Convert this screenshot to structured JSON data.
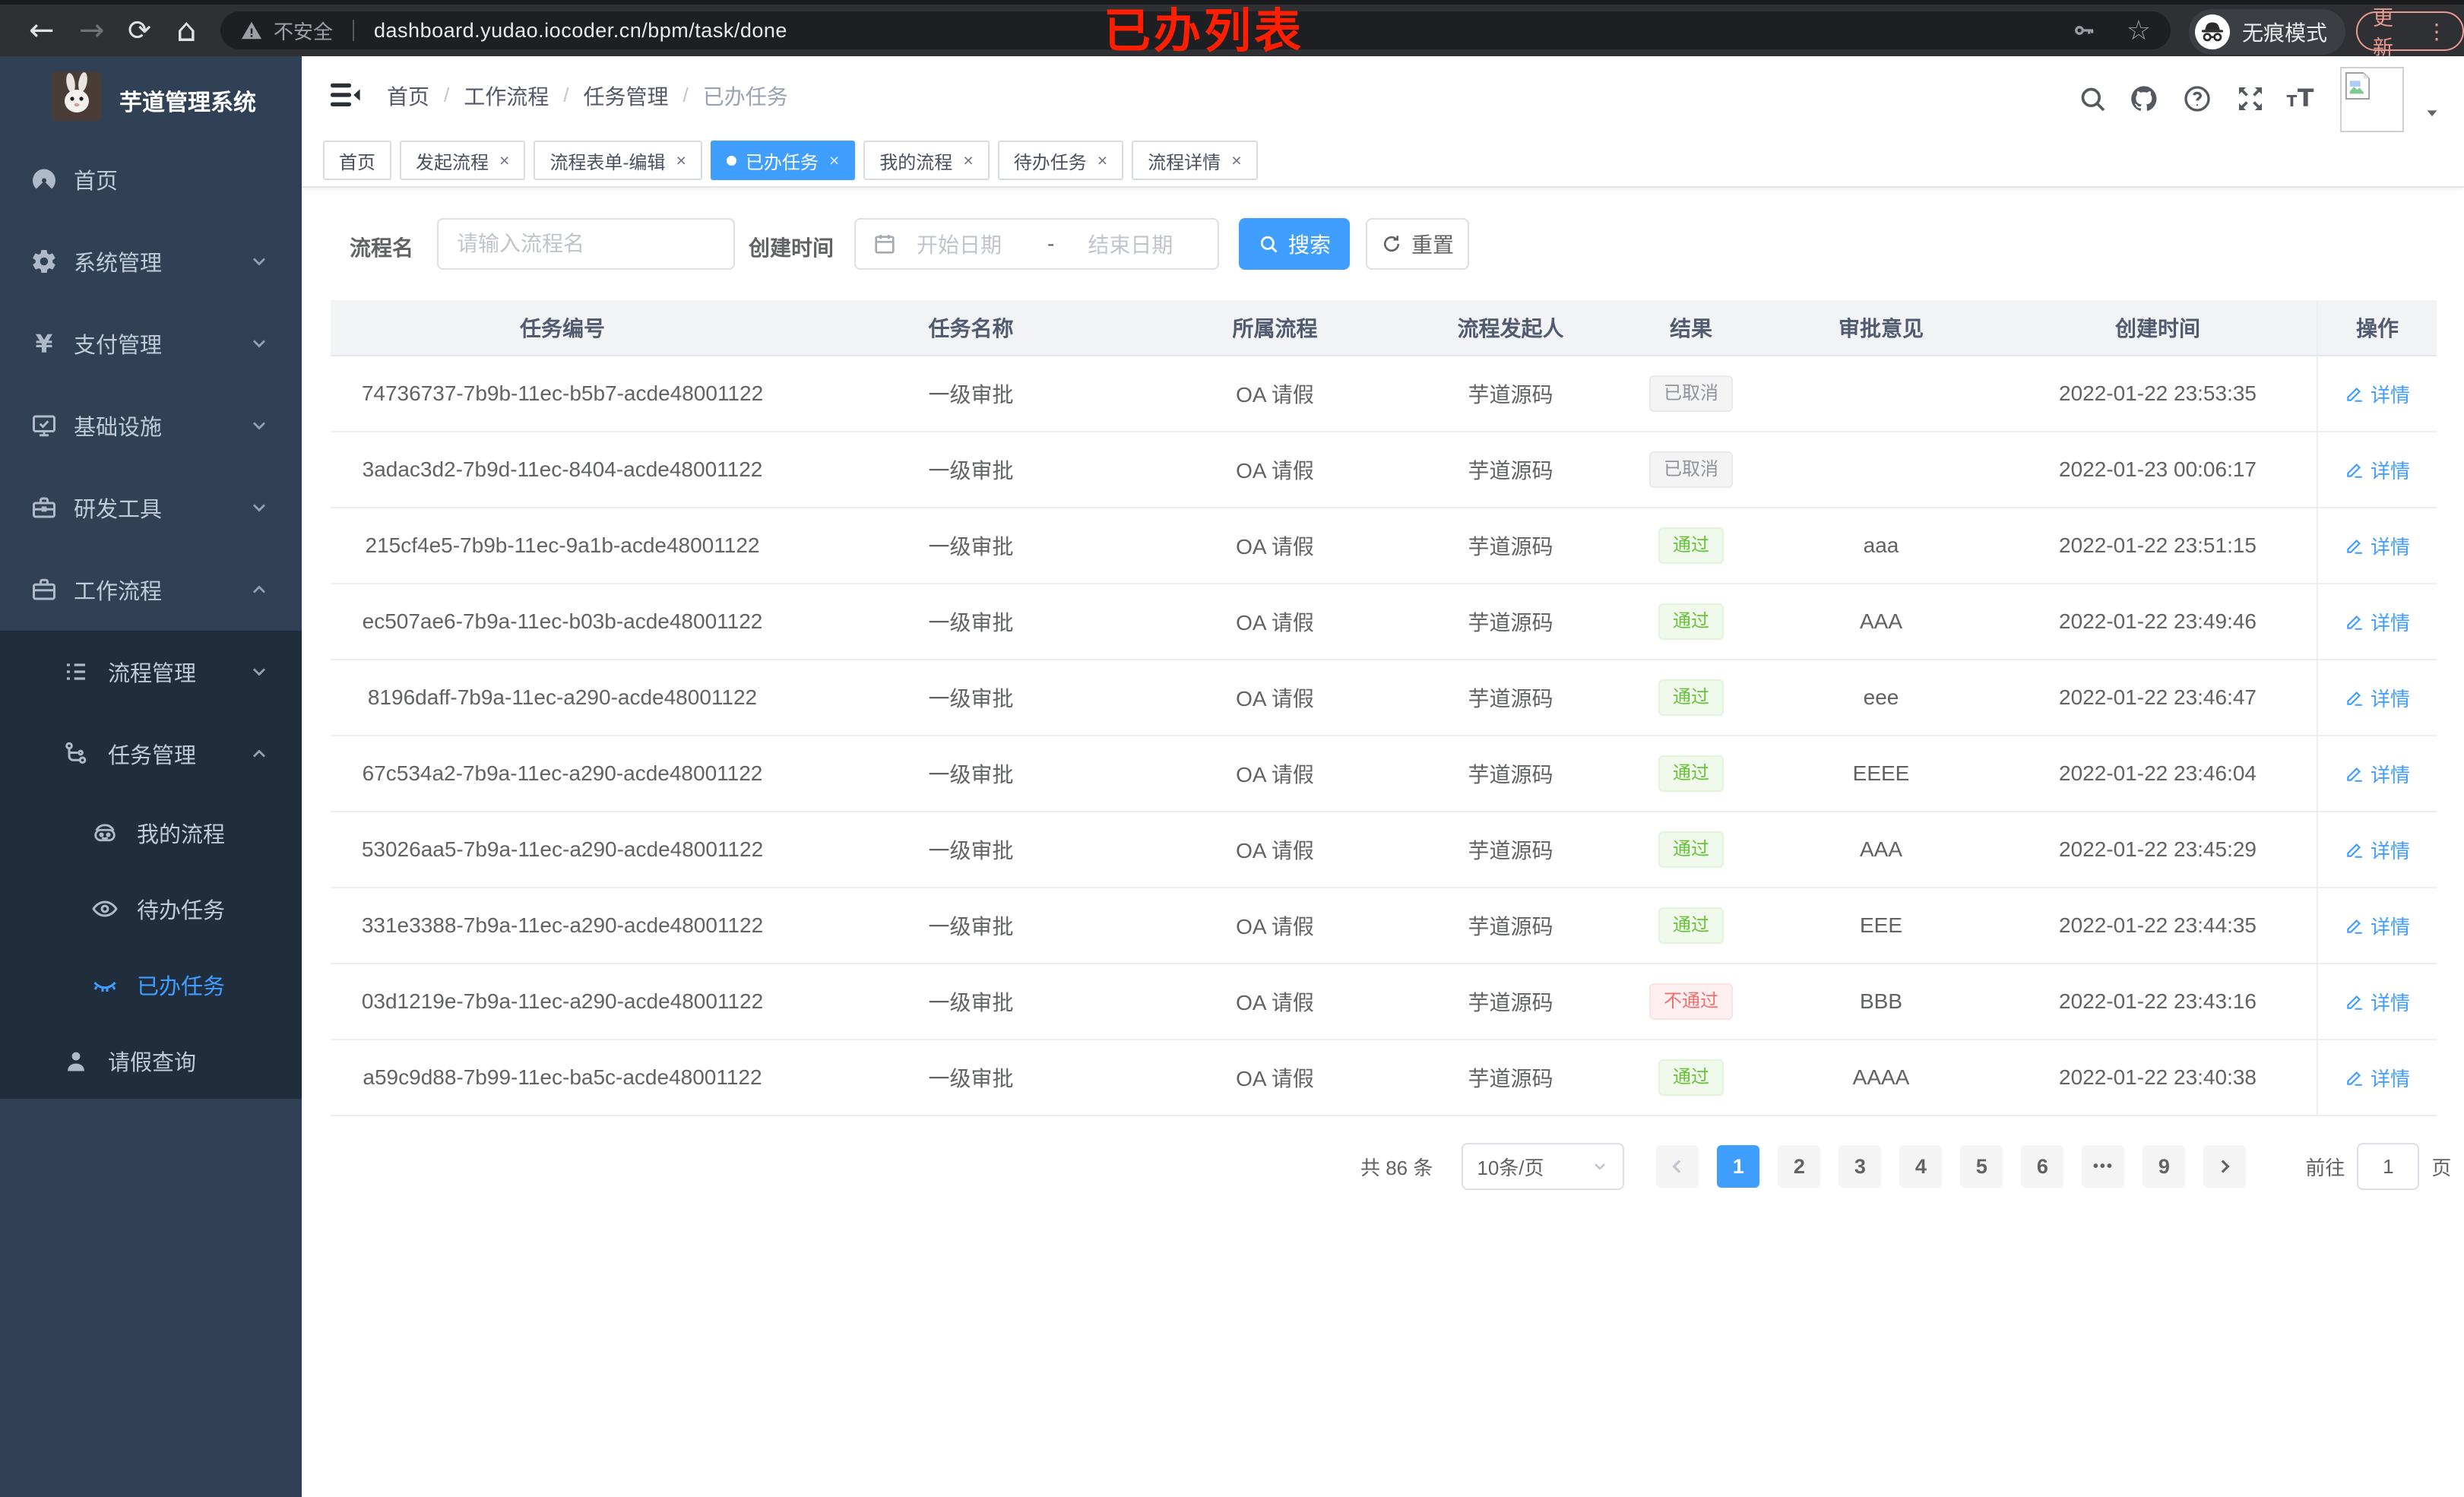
{
  "annotation": {
    "label": "已办列表",
    "color": "#ff1e00"
  },
  "browser": {
    "security": "不安全",
    "url": "dashboard.yudao.iocoder.cn/bpm/task/done",
    "incognito": "无痕模式",
    "update": "更新"
  },
  "sidebar": {
    "title": "芋道管理系统",
    "menu": [
      {
        "label": "首页",
        "icon": "dashboard",
        "level": 1
      },
      {
        "label": "系统管理",
        "icon": "gear",
        "level": 1,
        "chevron": "down"
      },
      {
        "label": "支付管理",
        "icon": "yen",
        "level": 1,
        "chevron": "down"
      },
      {
        "label": "基础设施",
        "icon": "monitor",
        "level": 1,
        "chevron": "down"
      },
      {
        "label": "研发工具",
        "icon": "toolbox",
        "level": 1,
        "chevron": "down"
      },
      {
        "label": "工作流程",
        "icon": "suitcase",
        "level": 1,
        "chevron": "up"
      },
      {
        "label": "流程管理",
        "icon": "tree-list",
        "level": 2,
        "chevron": "down",
        "dark": true
      },
      {
        "label": "任务管理",
        "icon": "flow",
        "level": 2,
        "chevron": "up",
        "dark": true
      },
      {
        "label": "我的流程",
        "icon": "robot",
        "level": 3,
        "dark": true
      },
      {
        "label": "待办任务",
        "icon": "eye-open",
        "level": 3,
        "dark": true
      },
      {
        "label": "已办任务",
        "icon": "eye-closed",
        "level": 3,
        "dark": true,
        "active": true
      },
      {
        "label": "请假查询",
        "icon": "user",
        "level": 2,
        "dark": true
      }
    ]
  },
  "breadcrumb": {
    "items": [
      "首页",
      "工作流程",
      "任务管理",
      "已办任务"
    ]
  },
  "tabs": [
    {
      "label": "首页"
    },
    {
      "label": "发起流程",
      "closable": true
    },
    {
      "label": "流程表单-编辑",
      "closable": true
    },
    {
      "label": "已办任务",
      "closable": true,
      "active": true
    },
    {
      "label": "我的流程",
      "closable": true
    },
    {
      "label": "待办任务",
      "closable": true
    },
    {
      "label": "流程详情",
      "closable": true
    }
  ],
  "filters": {
    "name_label": "流程名",
    "name_placeholder": "请输入流程名",
    "time_label": "创建时间",
    "start_placeholder": "开始日期",
    "range_separator": "-",
    "end_placeholder": "结束日期",
    "search_label": "搜索",
    "reset_label": "重置"
  },
  "table": {
    "columns": [
      "任务编号",
      "任务名称",
      "所属流程",
      "流程发起人",
      "结果",
      "审批意见",
      "创建时间",
      "操作"
    ],
    "detail_label": "详情",
    "rows": [
      {
        "id": "74736737-7b9b-11ec-b5b7-acde48001122",
        "name": "一级审批",
        "process": "OA 请假",
        "starter": "芋道源码",
        "result": "已取消",
        "result_type": "info",
        "opinion": "",
        "time": "2022-01-22 23:53:35"
      },
      {
        "id": "3adac3d2-7b9d-11ec-8404-acde48001122",
        "name": "一级审批",
        "process": "OA 请假",
        "starter": "芋道源码",
        "result": "已取消",
        "result_type": "info",
        "opinion": "",
        "time": "2022-01-23 00:06:17"
      },
      {
        "id": "215cf4e5-7b9b-11ec-9a1b-acde48001122",
        "name": "一级审批",
        "process": "OA 请假",
        "starter": "芋道源码",
        "result": "通过",
        "result_type": "success",
        "opinion": "aaa",
        "time": "2022-01-22 23:51:15"
      },
      {
        "id": "ec507ae6-7b9a-11ec-b03b-acde48001122",
        "name": "一级审批",
        "process": "OA 请假",
        "starter": "芋道源码",
        "result": "通过",
        "result_type": "success",
        "opinion": "AAA",
        "time": "2022-01-22 23:49:46"
      },
      {
        "id": "8196daff-7b9a-11ec-a290-acde48001122",
        "name": "一级审批",
        "process": "OA 请假",
        "starter": "芋道源码",
        "result": "通过",
        "result_type": "success",
        "opinion": "eee",
        "time": "2022-01-22 23:46:47"
      },
      {
        "id": "67c534a2-7b9a-11ec-a290-acde48001122",
        "name": "一级审批",
        "process": "OA 请假",
        "starter": "芋道源码",
        "result": "通过",
        "result_type": "success",
        "opinion": "EEEE",
        "time": "2022-01-22 23:46:04"
      },
      {
        "id": "53026aa5-7b9a-11ec-a290-acde48001122",
        "name": "一级审批",
        "process": "OA 请假",
        "starter": "芋道源码",
        "result": "通过",
        "result_type": "success",
        "opinion": "AAA",
        "time": "2022-01-22 23:45:29"
      },
      {
        "id": "331e3388-7b9a-11ec-a290-acde48001122",
        "name": "一级审批",
        "process": "OA 请假",
        "starter": "芋道源码",
        "result": "通过",
        "result_type": "success",
        "opinion": "EEE",
        "time": "2022-01-22 23:44:35"
      },
      {
        "id": "03d1219e-7b9a-11ec-a290-acde48001122",
        "name": "一级审批",
        "process": "OA 请假",
        "starter": "芋道源码",
        "result": "不通过",
        "result_type": "danger",
        "opinion": "BBB",
        "time": "2022-01-22 23:43:16"
      },
      {
        "id": "a59c9d88-7b99-11ec-ba5c-acde48001122",
        "name": "一级审批",
        "process": "OA 请假",
        "starter": "芋道源码",
        "result": "通过",
        "result_type": "success",
        "opinion": "AAAA",
        "time": "2022-01-22 23:40:38"
      }
    ]
  },
  "pagination": {
    "total": "共 86 条",
    "page_size": "10条/页",
    "pages": [
      "1",
      "2",
      "3",
      "4",
      "5",
      "6",
      "•••",
      "9"
    ],
    "active_page": "1",
    "goto_label": "前往",
    "goto_value": "1",
    "page_unit": "页"
  },
  "colors": {
    "accent": "#409eff",
    "success": "#67c23a",
    "danger": "#f56c6c",
    "info": "#909399",
    "sidebar_bg": "#304156",
    "submenu_bg": "#1f2d3d",
    "annotation": "#ff1e00"
  }
}
